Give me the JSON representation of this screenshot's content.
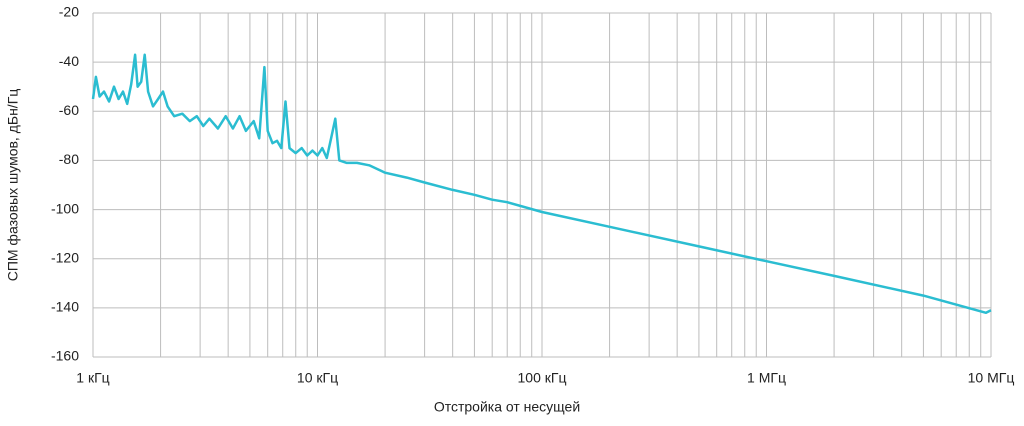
{
  "chart_data": {
    "type": "line",
    "xlabel": "Отстройка от несущей",
    "ylabel": "СПМ фазовых шумов, дБн/Гц",
    "xscale": "log",
    "grid": true,
    "xlim": [
      1000,
      10000000
    ],
    "ylim": [
      -160,
      -20
    ],
    "xticks": [
      {
        "value": 1000,
        "label": "1 кГц"
      },
      {
        "value": 10000,
        "label": "10 кГц"
      },
      {
        "value": 100000,
        "label": "100 кГц"
      },
      {
        "value": 1000000,
        "label": "1 МГц"
      },
      {
        "value": 10000000,
        "label": "10 МГц"
      }
    ],
    "yticks": [
      -160,
      -140,
      -120,
      -100,
      -80,
      -60,
      -40,
      -20
    ],
    "series": [
      {
        "color": "#2bbdd1",
        "x": [
          1000,
          1030,
          1070,
          1120,
          1180,
          1240,
          1300,
          1360,
          1420,
          1480,
          1540,
          1580,
          1640,
          1700,
          1760,
          1850,
          1950,
          2050,
          2150,
          2300,
          2500,
          2700,
          2900,
          3100,
          3300,
          3600,
          3900,
          4200,
          4500,
          4800,
          5200,
          5500,
          5800,
          6000,
          6300,
          6600,
          6900,
          7200,
          7500,
          8000,
          8500,
          9000,
          9500,
          10000,
          10500,
          11000,
          11500,
          12000,
          12500,
          13500,
          15000,
          17000,
          20000,
          25000,
          30000,
          40000,
          50000,
          60000,
          70000,
          100000,
          200000,
          500000,
          1000000,
          2000000,
          5000000,
          9500000,
          10000000
        ],
        "values": [
          -55,
          -46,
          -54,
          -52,
          -56,
          -50,
          -55,
          -52,
          -57,
          -49,
          -37,
          -50,
          -48,
          -37,
          -52,
          -58,
          -55,
          -52,
          -58,
          -62,
          -61,
          -64,
          -62,
          -66,
          -63,
          -67,
          -62,
          -67,
          -62,
          -68,
          -64,
          -71,
          -42,
          -68,
          -73,
          -72,
          -75,
          -56,
          -75,
          -77,
          -75,
          -78,
          -76,
          -78,
          -75,
          -79,
          -71,
          -63,
          -80,
          -81,
          -81,
          -82,
          -85,
          -87,
          -89,
          -92,
          -94,
          -96,
          -97,
          -101,
          -107,
          -115,
          -121,
          -127,
          -135,
          -142,
          -141
        ]
      }
    ]
  }
}
